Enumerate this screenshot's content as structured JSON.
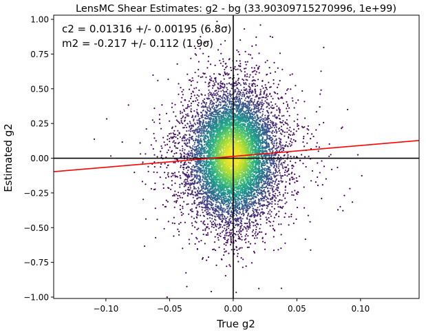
{
  "chart_data": {
    "type": "scatter",
    "title": "LensMC Shear Estimates: g2  - bg (33.90309715270996, 1e+99)",
    "xlabel": "True g2",
    "ylabel": "Estimated g2",
    "xlim": [
      -0.141,
      0.146
    ],
    "ylim": [
      -1.01,
      1.03
    ],
    "x_ticks": [
      -0.1,
      -0.05,
      0.0,
      0.05,
      0.1
    ],
    "x_tick_labels": [
      "−0.10",
      "−0.05",
      "0.00",
      "0.05",
      "0.10"
    ],
    "y_ticks": [
      -1.0,
      -0.75,
      -0.5,
      -0.25,
      0.0,
      0.25,
      0.5,
      0.75,
      1.0
    ],
    "y_tick_labels": [
      "−1.00",
      "−0.75",
      "−0.50",
      "−0.25",
      "0.00",
      "0.25",
      "0.50",
      "0.75",
      "1.00"
    ],
    "annotations": [
      "c2 = 0.01316 +/- 0.00195 (6.8σ)",
      "m2 = -0.217 +/- 0.112 (1.9σ)"
    ],
    "fit_line": {
      "slope": 0.783,
      "intercept": 0.01316,
      "color": "#ff0000"
    },
    "reference_lines": {
      "x": 0.0,
      "y": 0.0,
      "color": "#000000"
    },
    "colormap": "viridis",
    "grid": false,
    "legend": "none",
    "point_density": {
      "x_std": 0.018,
      "y_std": 0.24,
      "n_points": 9000
    }
  }
}
